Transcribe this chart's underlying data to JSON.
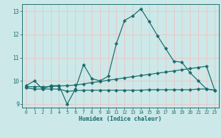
{
  "xlabel": "Humidex (Indice chaleur)",
  "background_color": "#cce8e8",
  "grid_color": "#e8c8c8",
  "line_color": "#1a6b6b",
  "xlim": [
    -0.5,
    23.5
  ],
  "ylim": [
    8.85,
    13.3
  ],
  "xticks": [
    0,
    1,
    2,
    3,
    4,
    5,
    6,
    7,
    8,
    9,
    10,
    11,
    12,
    13,
    14,
    15,
    16,
    17,
    18,
    19,
    20,
    21,
    22,
    23
  ],
  "yticks": [
    9,
    10,
    11,
    12,
    13
  ],
  "line1_x": [
    0,
    1,
    2,
    3,
    4,
    5,
    6,
    7,
    8,
    9,
    10,
    11,
    12,
    13,
    14,
    15,
    16,
    17,
    18,
    19,
    20,
    21,
    22,
    23
  ],
  "line1_y": [
    9.8,
    10.0,
    9.65,
    9.8,
    9.8,
    9.0,
    9.65,
    10.7,
    10.1,
    10.0,
    10.2,
    11.6,
    12.6,
    12.8,
    13.1,
    12.55,
    11.95,
    11.4,
    10.85,
    10.8,
    10.35,
    10.0,
    9.65,
    9.6
  ],
  "line2_x": [
    0,
    1,
    2,
    3,
    4,
    5,
    6,
    7,
    8,
    9,
    10,
    11,
    12,
    13,
    14,
    15,
    16,
    17,
    18,
    19,
    20,
    21,
    22,
    23
  ],
  "line2_y": [
    9.75,
    9.75,
    9.75,
    9.75,
    9.78,
    9.8,
    9.82,
    9.87,
    9.93,
    9.97,
    10.03,
    10.08,
    10.13,
    10.18,
    10.23,
    10.28,
    10.33,
    10.38,
    10.43,
    10.48,
    10.53,
    10.58,
    10.63,
    9.6
  ],
  "line3_x": [
    0,
    1,
    2,
    3,
    4,
    5,
    6,
    7,
    8,
    9,
    10,
    11,
    12,
    13,
    14,
    15,
    16,
    17,
    18,
    19,
    20,
    21,
    22,
    23
  ],
  "line3_y": [
    9.7,
    9.65,
    9.65,
    9.65,
    9.65,
    9.55,
    9.58,
    9.6,
    9.6,
    9.6,
    9.6,
    9.6,
    9.6,
    9.6,
    9.6,
    9.62,
    9.62,
    9.62,
    9.62,
    9.62,
    9.62,
    9.65,
    9.65,
    9.6
  ]
}
